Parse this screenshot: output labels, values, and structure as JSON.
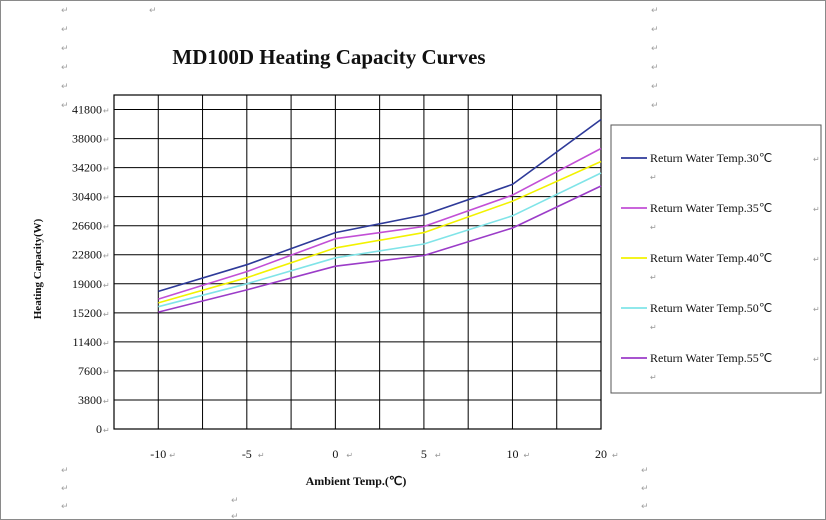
{
  "chart_data": {
    "type": "line",
    "title": "MD100D Heating Capacity Curves",
    "xlabel": "Ambient Temp.(℃)",
    "ylabel": "Heating Capacity(W)",
    "x": [
      -10,
      -5,
      0,
      5,
      10,
      20
    ],
    "xticks": [
      "-10",
      "-5",
      "0",
      "5",
      "10",
      "20"
    ],
    "yticks": [
      0,
      3800,
      7600,
      11400,
      15200,
      19000,
      22800,
      26600,
      30400,
      34200,
      38000,
      41800
    ],
    "ylim": [
      0,
      41800
    ],
    "grid": true,
    "legend_position": "right",
    "series": [
      {
        "name": "Return Water Temp.30℃",
        "color": "#2e3a99",
        "values": [
          18000,
          21500,
          25700,
          28000,
          32000,
          40500
        ]
      },
      {
        "name": "Return Water Temp.35℃",
        "color": "#c24fd6",
        "values": [
          17000,
          20600,
          24900,
          26500,
          30600,
          36700
        ]
      },
      {
        "name": "Return Water Temp.40℃",
        "color": "#f2f200",
        "values": [
          16500,
          19800,
          23700,
          25700,
          29800,
          35000
        ]
      },
      {
        "name": "Return Water Temp.50℃",
        "color": "#80e4e8",
        "values": [
          16000,
          19000,
          22400,
          24200,
          27900,
          33500
        ]
      },
      {
        "name": "Return Water Temp.55℃",
        "color": "#9b3cc8",
        "values": [
          15300,
          18200,
          21300,
          22700,
          26300,
          31800
        ]
      }
    ]
  }
}
